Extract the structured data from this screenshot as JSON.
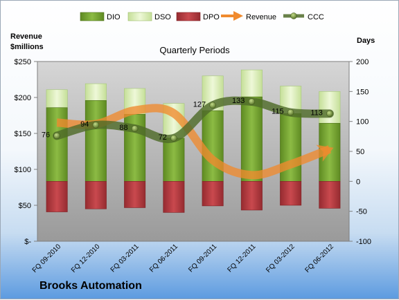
{
  "chart_data": {
    "type": "bar",
    "title": "Quarterly Periods",
    "ylabel_left": "Revenue\n$millions",
    "ylabel_right": "Days",
    "categories": [
      "FQ 09-2010",
      "FQ 12-2010",
      "FQ 03-2011",
      "FQ 06-2011",
      "FQ 09-2011",
      "FQ 12-2011",
      "FQ 03-2012",
      "FQ 06-2012"
    ],
    "left_axis": {
      "range": [
        0,
        250
      ],
      "ticks": [
        0,
        50,
        100,
        150,
        200,
        250
      ],
      "tick_labels": [
        "$-",
        "$50",
        "$100",
        "$150",
        "$200",
        "$250"
      ]
    },
    "right_axis": {
      "range": [
        -100,
        200
      ],
      "ticks": [
        -100,
        -50,
        0,
        50,
        100,
        150,
        200
      ],
      "tick_labels": [
        "-100",
        "-50",
        "0",
        "50",
        "100",
        "150",
        "200"
      ]
    },
    "series": [
      {
        "name": "DIO",
        "type": "stacked-bar",
        "axis": "right",
        "values": [
          123,
          135,
          112,
          72,
          118,
          141,
          113,
          97
        ],
        "color": "#6e9a2a"
      },
      {
        "name": "DSO",
        "type": "stacked-bar",
        "axis": "right",
        "values": [
          30,
          28,
          43,
          58,
          58,
          45,
          46,
          53
        ],
        "color": "#d6ebb0"
      },
      {
        "name": "DPO",
        "type": "stacked-bar",
        "axis": "right",
        "values": [
          -51,
          -46,
          -44,
          -52,
          -41,
          -48,
          -40,
          -45
        ],
        "color": "#b93b3f"
      },
      {
        "name": "Revenue",
        "type": "line",
        "axis": "left",
        "values": [
          165,
          163,
          182,
          178,
          113,
          92,
          107,
          128
        ],
        "color": "#f08a2e"
      },
      {
        "name": "CCC",
        "type": "line",
        "axis": "right",
        "values": [
          76,
          94,
          88,
          72,
          127,
          133,
          115,
          113
        ],
        "data_labels": [
          "76",
          "94",
          "88",
          "72",
          "127",
          "133",
          "115",
          "113"
        ],
        "color": "#4f6b2a"
      }
    ],
    "legend_placement": "top",
    "grid": false
  },
  "company": "Brooks Automation"
}
